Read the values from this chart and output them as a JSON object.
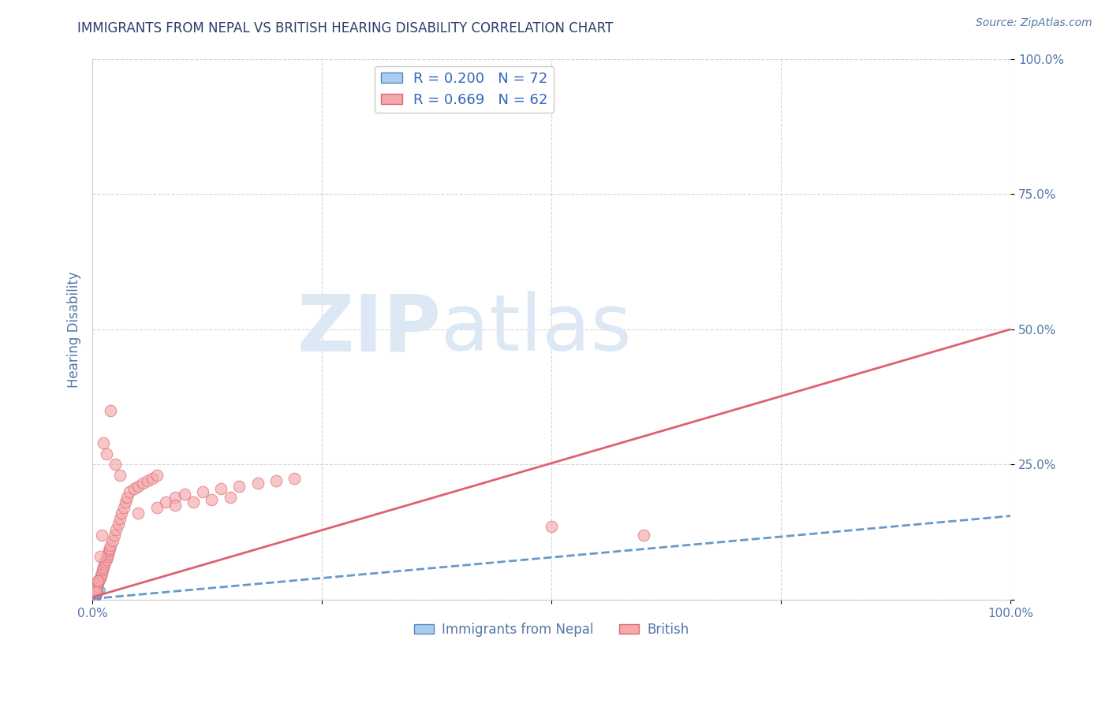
{
  "title": "IMMIGRANTS FROM NEPAL VS BRITISH HEARING DISABILITY CORRELATION CHART",
  "source": "Source: ZipAtlas.com",
  "ylabel": "Hearing Disability",
  "xlim": [
    0,
    1.0
  ],
  "ylim": [
    0,
    1.0
  ],
  "background_color": "#ffffff",
  "grid_color": "#cccccc",
  "nepal_color": "#aaccee",
  "nepal_edge_color": "#5588bb",
  "british_color": "#f4aaaa",
  "british_edge_color": "#dd6677",
  "nepal_R": 0.2,
  "nepal_N": 72,
  "british_R": 0.669,
  "british_N": 62,
  "nepal_line_color": "#6699cc",
  "british_line_color": "#e06070",
  "title_color": "#2c3e6b",
  "axis_label_color": "#5577aa",
  "legend_R_color": "#3366bb",
  "watermark_text": "ZIPatlas",
  "watermark_color": "#dde8f5",
  "nepal_line_x0": 0.0,
  "nepal_line_y0": 0.002,
  "nepal_line_x1": 1.0,
  "nepal_line_y1": 0.155,
  "british_line_x0": 0.0,
  "british_line_y0": 0.005,
  "british_line_x1": 1.0,
  "british_line_y1": 0.5,
  "nepal_scatter_x": [
    0.001,
    0.002,
    0.003,
    0.001,
    0.002,
    0.001,
    0.003,
    0.004,
    0.002,
    0.001,
    0.003,
    0.005,
    0.002,
    0.001,
    0.004,
    0.002,
    0.003,
    0.001,
    0.006,
    0.002,
    0.003,
    0.004,
    0.001,
    0.002,
    0.005,
    0.003,
    0.001,
    0.002,
    0.004,
    0.003,
    0.002,
    0.001,
    0.005,
    0.003,
    0.002,
    0.004,
    0.003,
    0.001,
    0.002,
    0.006,
    0.003,
    0.002,
    0.004,
    0.001,
    0.003,
    0.002,
    0.005,
    0.001,
    0.003,
    0.004,
    0.007,
    0.002,
    0.001,
    0.003,
    0.006,
    0.002,
    0.004,
    0.003,
    0.001,
    0.002,
    0.008,
    0.003,
    0.002,
    0.004,
    0.001,
    0.005,
    0.002,
    0.003,
    0.006,
    0.001,
    0.002,
    0.004
  ],
  "nepal_scatter_y": [
    0.01,
    0.005,
    0.008,
    0.012,
    0.003,
    0.007,
    0.015,
    0.006,
    0.004,
    0.011,
    0.009,
    0.013,
    0.002,
    0.008,
    0.007,
    0.005,
    0.01,
    0.006,
    0.014,
    0.003,
    0.009,
    0.011,
    0.007,
    0.005,
    0.016,
    0.008,
    0.004,
    0.012,
    0.006,
    0.01,
    0.007,
    0.003,
    0.013,
    0.009,
    0.006,
    0.011,
    0.008,
    0.004,
    0.007,
    0.015,
    0.01,
    0.005,
    0.012,
    0.003,
    0.009,
    0.006,
    0.014,
    0.004,
    0.008,
    0.011,
    0.016,
    0.005,
    0.003,
    0.009,
    0.015,
    0.006,
    0.012,
    0.008,
    0.004,
    0.007,
    0.017,
    0.01,
    0.005,
    0.013,
    0.003,
    0.011,
    0.006,
    0.009,
    0.014,
    0.004,
    0.007,
    0.012
  ],
  "british_scatter_x": [
    0.001,
    0.002,
    0.003,
    0.004,
    0.005,
    0.006,
    0.007,
    0.008,
    0.009,
    0.01,
    0.011,
    0.012,
    0.013,
    0.014,
    0.015,
    0.016,
    0.017,
    0.018,
    0.019,
    0.02,
    0.022,
    0.024,
    0.026,
    0.028,
    0.03,
    0.032,
    0.034,
    0.036,
    0.038,
    0.04,
    0.045,
    0.05,
    0.055,
    0.06,
    0.065,
    0.07,
    0.08,
    0.09,
    0.1,
    0.12,
    0.14,
    0.16,
    0.18,
    0.2,
    0.22,
    0.03,
    0.025,
    0.015,
    0.01,
    0.008,
    0.006,
    0.004,
    0.05,
    0.07,
    0.09,
    0.11,
    0.13,
    0.15,
    0.5,
    0.6,
    0.012,
    0.02
  ],
  "british_scatter_y": [
    0.005,
    0.01,
    0.015,
    0.02,
    0.025,
    0.03,
    0.035,
    0.04,
    0.045,
    0.05,
    0.055,
    0.06,
    0.065,
    0.07,
    0.075,
    0.08,
    0.085,
    0.09,
    0.095,
    0.1,
    0.11,
    0.12,
    0.13,
    0.14,
    0.15,
    0.16,
    0.17,
    0.18,
    0.19,
    0.2,
    0.205,
    0.21,
    0.215,
    0.22,
    0.225,
    0.23,
    0.18,
    0.19,
    0.195,
    0.2,
    0.205,
    0.21,
    0.215,
    0.22,
    0.225,
    0.23,
    0.25,
    0.27,
    0.12,
    0.08,
    0.035,
    0.015,
    0.16,
    0.17,
    0.175,
    0.18,
    0.185,
    0.19,
    0.135,
    0.12,
    0.29,
    0.35
  ]
}
